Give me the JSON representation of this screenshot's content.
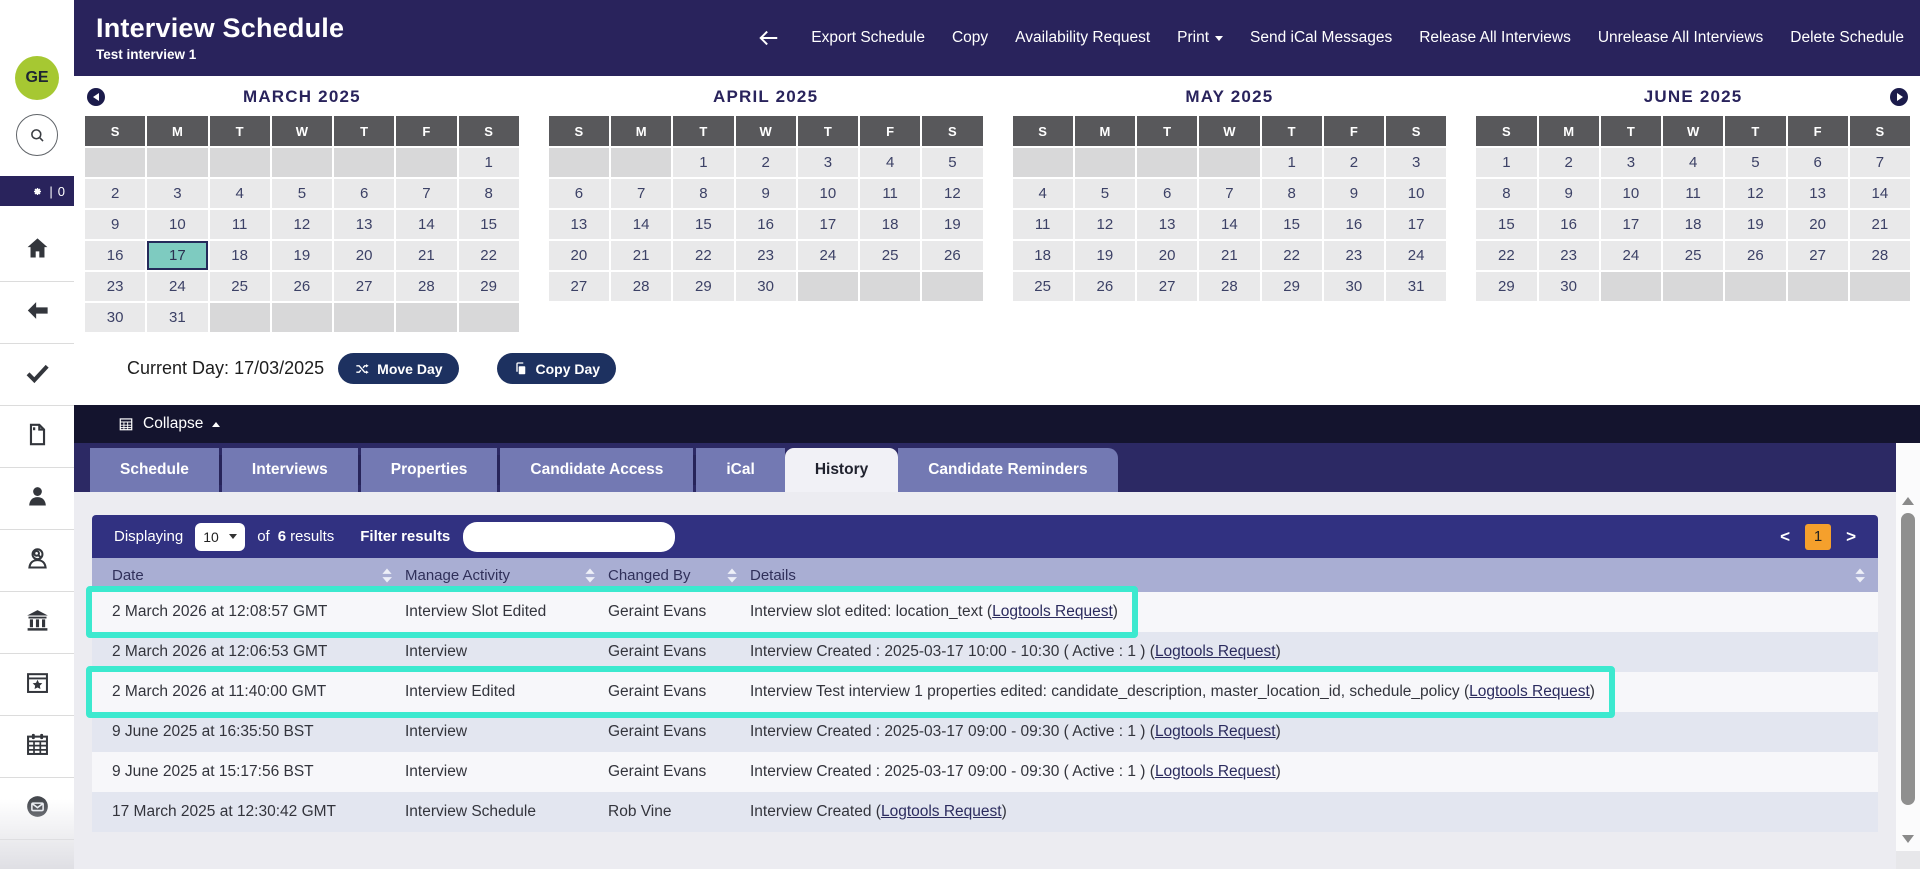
{
  "colors": {
    "header_navy": "#29235c",
    "collapse_bar": "#14142e",
    "tab_strip_bg": "#2c2964",
    "tab_inactive": "#7379b3",
    "tab_active_bg": "#f1f1f6",
    "content_bg": "#ececf1",
    "toolbar_indigo": "#313181",
    "table_header_bg": "#a9aed3",
    "row_odd": "#f7f7fa",
    "row_even": "#e3e6f0",
    "highlight_cyan": "#3ce9cf",
    "selected_day_teal": "#7ecbc0",
    "avatar_green": "#a6c832",
    "page_orange": "#f5a02c",
    "button_navy": "#1d3160",
    "day_header_gray": "#58585b",
    "day_cell": "#e9e9ea",
    "day_empty": "#d8d8d9",
    "link_navy": "#2b2b5e"
  },
  "app": {
    "title": "Interview Schedule",
    "subtitle": "Test interview 1"
  },
  "header": {
    "back_icon": "back-arrow-icon",
    "nav": [
      {
        "label": "Export Schedule"
      },
      {
        "label": "Copy"
      },
      {
        "label": "Availability Request"
      },
      {
        "label": "Print",
        "caret": true
      },
      {
        "label": "Send iCal Messages"
      },
      {
        "label": "Release All Interviews"
      },
      {
        "label": "Unrelease All Interviews"
      },
      {
        "label": "Delete Schedule"
      }
    ]
  },
  "sidebar": {
    "avatar": "GE",
    "settings": {
      "icon": "gear-icon",
      "separator": "|",
      "count": "0"
    },
    "search_icon": "search-icon",
    "icons": [
      "home-icon",
      "back-arrow-icon",
      "checkmark-icon",
      "document-icon",
      "person-icon",
      "person-search-icon",
      "bank-icon",
      "calendar-star-icon",
      "calendar-icon",
      "envelope-icon"
    ]
  },
  "calendars": [
    {
      "title": "MARCH 2025",
      "nav_prev": true,
      "day_headers": [
        "S",
        "M",
        "T",
        "W",
        "T",
        "F",
        "S"
      ],
      "weeks": [
        [
          null,
          null,
          null,
          null,
          null,
          null,
          1
        ],
        [
          2,
          3,
          4,
          5,
          6,
          7,
          8
        ],
        [
          9,
          10,
          11,
          12,
          13,
          14,
          15
        ],
        [
          16,
          17,
          18,
          19,
          20,
          21,
          22
        ],
        [
          23,
          24,
          25,
          26,
          27,
          28,
          29
        ],
        [
          30,
          31,
          null,
          null,
          null,
          null,
          null
        ]
      ],
      "selected_day": 17
    },
    {
      "title": "APRIL 2025",
      "day_headers": [
        "S",
        "M",
        "T",
        "W",
        "T",
        "F",
        "S"
      ],
      "weeks": [
        [
          null,
          null,
          1,
          2,
          3,
          4,
          5
        ],
        [
          6,
          7,
          8,
          9,
          10,
          11,
          12
        ],
        [
          13,
          14,
          15,
          16,
          17,
          18,
          19
        ],
        [
          20,
          21,
          22,
          23,
          24,
          25,
          26
        ],
        [
          27,
          28,
          29,
          30,
          null,
          null,
          null
        ]
      ]
    },
    {
      "title": "MAY 2025",
      "day_headers": [
        "S",
        "M",
        "T",
        "W",
        "T",
        "F",
        "S"
      ],
      "weeks": [
        [
          null,
          null,
          null,
          null,
          1,
          2,
          3
        ],
        [
          4,
          5,
          6,
          7,
          8,
          9,
          10
        ],
        [
          11,
          12,
          13,
          14,
          15,
          16,
          17
        ],
        [
          18,
          19,
          20,
          21,
          22,
          23,
          24
        ],
        [
          25,
          26,
          27,
          28,
          29,
          30,
          31
        ]
      ]
    },
    {
      "title": "JUNE 2025",
      "nav_next": true,
      "day_headers": [
        "S",
        "M",
        "T",
        "W",
        "T",
        "F",
        "S"
      ],
      "weeks": [
        [
          1,
          2,
          3,
          4,
          5,
          6,
          7
        ],
        [
          8,
          9,
          10,
          11,
          12,
          13,
          14
        ],
        [
          15,
          16,
          17,
          18,
          19,
          20,
          21
        ],
        [
          22,
          23,
          24,
          25,
          26,
          27,
          28
        ],
        [
          29,
          30,
          null,
          null,
          null,
          null,
          null
        ]
      ]
    }
  ],
  "current_day": {
    "label": "Current Day:",
    "date": "17/03/2025",
    "move_button": "Move Day",
    "copy_button": "Copy Day"
  },
  "collapse": {
    "label": "Collapse",
    "icon": "calendar-grid-icon"
  },
  "tabs": {
    "items": [
      "Schedule",
      "Interviews",
      "Properties",
      "Candidate Access",
      "iCal",
      "History",
      "Candidate Reminders"
    ],
    "active": "History"
  },
  "table": {
    "displaying_label": "Displaying",
    "page_size": "10",
    "of_label": "of",
    "results_count": "6",
    "results_label": "results",
    "filter_label": "Filter results",
    "filter_value": "",
    "pagination": {
      "prev": "<",
      "page": "1",
      "next": ">"
    },
    "columns": [
      "Date",
      "Manage Activity",
      "Changed By",
      "Details"
    ],
    "rows": [
      {
        "date": "2 March 2026 at 12:08:57 GMT",
        "activity": "Interview Slot Edited",
        "changed_by": "Geraint Evans",
        "details_pre": "Interview slot edited: location_text (",
        "details_link": "Logtools Request",
        "details_post": ")",
        "highlighted": true
      },
      {
        "date": "2 March 2026 at 12:06:53 GMT",
        "activity": "Interview",
        "changed_by": "Geraint Evans",
        "details_pre": "Interview Created : 2025-03-17 10:00 - 10:30 ( Active : 1 ) (",
        "details_link": "Logtools Request",
        "details_post": ")",
        "highlighted": false
      },
      {
        "date": "2 March 2026 at 11:40:00 GMT",
        "activity": "Interview Edited",
        "changed_by": "Geraint Evans",
        "details_pre": "Interview Test interview 1 properties edited: candidate_description, master_location_id, schedule_policy (",
        "details_link": "Logtools Request",
        "details_post": ")",
        "highlighted": true
      },
      {
        "date": "9 June 2025 at 16:35:50 BST",
        "activity": "Interview",
        "changed_by": "Geraint Evans",
        "details_pre": "Interview Created : 2025-03-17 09:00 - 09:30 ( Active : 1 ) (",
        "details_link": "Logtools Request",
        "details_post": ")",
        "highlighted": false
      },
      {
        "date": "9 June 2025 at 15:17:56 BST",
        "activity": "Interview",
        "changed_by": "Geraint Evans",
        "details_pre": "Interview Created : 2025-03-17 09:00 - 09:30 ( Active : 1 ) (",
        "details_link": "Logtools Request",
        "details_post": ")",
        "highlighted": false
      },
      {
        "date": "17 March 2025 at 12:30:42 GMT",
        "activity": "Interview Schedule",
        "changed_by": "Rob Vine",
        "details_pre": "Interview Created (",
        "details_link": "Logtools Request",
        "details_post": ")",
        "highlighted": false
      }
    ]
  }
}
